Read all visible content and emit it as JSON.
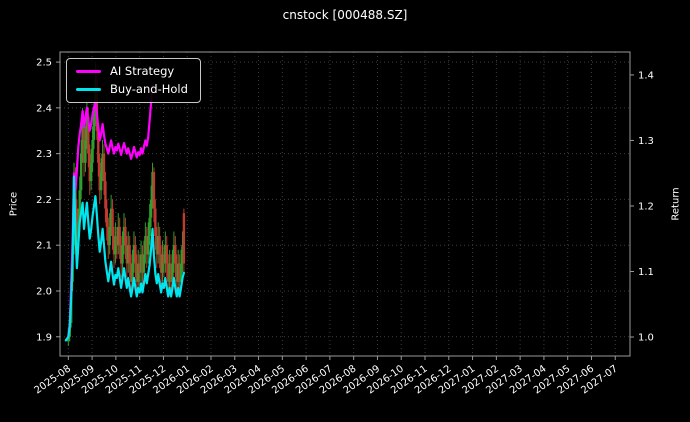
{
  "colors": {
    "background": "#000000",
    "text": "#ffffff",
    "grid": "#3d3d3d",
    "spine": "#9a9a9a",
    "ai_strategy": "#ff00ff",
    "buy_and_hold": "#00e5ee",
    "candle_up": "#2f9e2f",
    "candle_down": "#c03a30"
  },
  "chart_data": {
    "type": "line+candlestick",
    "title": "cnstock [000488.SZ]",
    "xlabel": "",
    "ylabel_left": "Price",
    "ylabel_right": "Return",
    "grid": true,
    "legend_position": "upper-left",
    "x_unit": "months since 2025-08",
    "xlim": [
      -0.35,
      23.62
    ],
    "ylim_left": [
      1.858,
      2.522
    ],
    "ylim_right": [
      0.971,
      1.435
    ],
    "x_tick_labels": [
      "2025-08",
      "2025-09",
      "2025-10",
      "2025-11",
      "2025-12",
      "2026-01",
      "2026-02",
      "2026-03",
      "2026-04",
      "2026-05",
      "2026-06",
      "2026-07",
      "2026-08",
      "2026-09",
      "2026-10",
      "2026-11",
      "2026-12",
      "2027-01",
      "2027-02",
      "2027-03",
      "2027-04",
      "2027-05",
      "2027-06",
      "2027-07"
    ],
    "yticks_left": [
      1.9,
      2.0,
      2.1,
      2.2,
      2.3,
      2.4,
      2.5
    ],
    "yticks_right": [
      1.0,
      1.1,
      1.2,
      1.3,
      1.4
    ],
    "series": [
      {
        "name": "AI Strategy",
        "axis": "right",
        "color": "#ff00ff",
        "points": [
          [
            -0.1,
            0.995
          ],
          [
            0.0,
            1.0
          ],
          [
            0.06,
            1.02
          ],
          [
            0.12,
            1.08
          ],
          [
            0.18,
            1.15
          ],
          [
            0.24,
            1.25
          ],
          [
            0.3,
            1.225
          ],
          [
            0.36,
            1.255
          ],
          [
            0.42,
            1.29
          ],
          [
            0.48,
            1.31
          ],
          [
            0.54,
            1.325
          ],
          [
            0.6,
            1.345
          ],
          [
            0.66,
            1.32
          ],
          [
            0.72,
            1.335
          ],
          [
            0.78,
            1.35
          ],
          [
            0.84,
            1.33
          ],
          [
            0.9,
            1.315
          ],
          [
            0.96,
            1.325
          ],
          [
            1.02,
            1.34
          ],
          [
            1.08,
            1.35
          ],
          [
            1.14,
            1.36
          ],
          [
            1.2,
            1.34
          ],
          [
            1.26,
            1.32
          ],
          [
            1.32,
            1.3
          ],
          [
            1.38,
            1.31
          ],
          [
            1.44,
            1.325
          ],
          [
            1.5,
            1.308
          ],
          [
            1.56,
            1.295
          ],
          [
            1.62,
            1.288
          ],
          [
            1.68,
            1.28
          ],
          [
            1.74,
            1.29
          ],
          [
            1.8,
            1.3
          ],
          [
            1.86,
            1.288
          ],
          [
            1.92,
            1.28
          ],
          [
            1.98,
            1.29
          ],
          [
            2.04,
            1.285
          ],
          [
            2.1,
            1.295
          ],
          [
            2.16,
            1.287
          ],
          [
            2.22,
            1.278
          ],
          [
            2.28,
            1.287
          ],
          [
            2.34,
            1.296
          ],
          [
            2.4,
            1.288
          ],
          [
            2.46,
            1.28
          ],
          [
            2.52,
            1.288
          ],
          [
            2.58,
            1.28
          ],
          [
            2.64,
            1.272
          ],
          [
            2.7,
            1.28
          ],
          [
            2.76,
            1.29
          ],
          [
            2.82,
            1.282
          ],
          [
            2.88,
            1.274
          ],
          [
            2.94,
            1.282
          ],
          [
            3.0,
            1.278
          ],
          [
            3.06,
            1.288
          ],
          [
            3.12,
            1.28
          ],
          [
            3.18,
            1.29
          ],
          [
            3.24,
            1.3
          ],
          [
            3.3,
            1.292
          ],
          [
            3.36,
            1.305
          ],
          [
            3.42,
            1.33
          ],
          [
            3.48,
            1.358
          ],
          [
            3.54,
            1.385
          ]
        ]
      },
      {
        "name": "Buy-and-Hold",
        "axis": "right",
        "color": "#00e5ee",
        "points": [
          [
            -0.1,
            0.995
          ],
          [
            0.0,
            1.0
          ],
          [
            0.06,
            1.015
          ],
          [
            0.12,
            1.06
          ],
          [
            0.18,
            1.12
          ],
          [
            0.24,
            1.245
          ],
          [
            0.3,
            1.16
          ],
          [
            0.36,
            1.105
          ],
          [
            0.42,
            1.14
          ],
          [
            0.48,
            1.175
          ],
          [
            0.54,
            1.19
          ],
          [
            0.6,
            1.205
          ],
          [
            0.66,
            1.165
          ],
          [
            0.72,
            1.185
          ],
          [
            0.78,
            1.205
          ],
          [
            0.84,
            1.175
          ],
          [
            0.9,
            1.15
          ],
          [
            0.96,
            1.165
          ],
          [
            1.02,
            1.185
          ],
          [
            1.08,
            1.2
          ],
          [
            1.14,
            1.215
          ],
          [
            1.2,
            1.185
          ],
          [
            1.26,
            1.155
          ],
          [
            1.32,
            1.13
          ],
          [
            1.38,
            1.145
          ],
          [
            1.44,
            1.165
          ],
          [
            1.5,
            1.14
          ],
          [
            1.56,
            1.115
          ],
          [
            1.62,
            1.1
          ],
          [
            1.68,
            1.085
          ],
          [
            1.74,
            1.1
          ],
          [
            1.8,
            1.115
          ],
          [
            1.86,
            1.095
          ],
          [
            1.92,
            1.08
          ],
          [
            1.98,
            1.095
          ],
          [
            2.04,
            1.09
          ],
          [
            2.1,
            1.105
          ],
          [
            2.16,
            1.09
          ],
          [
            2.22,
            1.075
          ],
          [
            2.28,
            1.09
          ],
          [
            2.34,
            1.105
          ],
          [
            2.4,
            1.09
          ],
          [
            2.46,
            1.075
          ],
          [
            2.52,
            1.09
          ],
          [
            2.58,
            1.075
          ],
          [
            2.64,
            1.062
          ],
          [
            2.7,
            1.075
          ],
          [
            2.76,
            1.09
          ],
          [
            2.82,
            1.075
          ],
          [
            2.88,
            1.062
          ],
          [
            2.94,
            1.075
          ],
          [
            3.0,
            1.068
          ],
          [
            3.06,
            1.082
          ],
          [
            3.12,
            1.068
          ],
          [
            3.18,
            1.082
          ],
          [
            3.24,
            1.096
          ],
          [
            3.3,
            1.082
          ],
          [
            3.36,
            1.096
          ],
          [
            3.42,
            1.11
          ],
          [
            3.48,
            1.135
          ],
          [
            3.54,
            1.165
          ],
          [
            3.6,
            1.125
          ],
          [
            3.66,
            1.096
          ],
          [
            3.72,
            1.082
          ],
          [
            3.78,
            1.096
          ],
          [
            3.84,
            1.082
          ],
          [
            3.9,
            1.068
          ],
          [
            3.96,
            1.082
          ],
          [
            4.02,
            1.075
          ],
          [
            4.08,
            1.09
          ],
          [
            4.14,
            1.075
          ],
          [
            4.2,
            1.062
          ],
          [
            4.26,
            1.075
          ],
          [
            4.32,
            1.062
          ],
          [
            4.38,
            1.075
          ],
          [
            4.44,
            1.09
          ],
          [
            4.5,
            1.075
          ],
          [
            4.56,
            1.062
          ],
          [
            4.62,
            1.075
          ],
          [
            4.68,
            1.062
          ],
          [
            4.74,
            1.075
          ],
          [
            4.8,
            1.09
          ],
          [
            4.86,
            1.098
          ]
        ]
      }
    ],
    "candles": {
      "axis": "left",
      "up_color": "#2f9e2f",
      "down_color": "#c03a30",
      "ohlc": [
        [
          0.0,
          1.89,
          1.92,
          1.88,
          1.9
        ],
        [
          0.06,
          1.9,
          1.96,
          1.89,
          1.93
        ],
        [
          0.12,
          1.93,
          2.05,
          1.92,
          2.02
        ],
        [
          0.18,
          2.02,
          2.13,
          2.0,
          2.1
        ],
        [
          0.24,
          2.1,
          2.28,
          2.08,
          2.25
        ],
        [
          0.3,
          2.25,
          2.27,
          2.15,
          2.18
        ],
        [
          0.36,
          2.18,
          2.2,
          2.07,
          2.1
        ],
        [
          0.42,
          2.1,
          2.18,
          2.08,
          2.15
        ],
        [
          0.48,
          2.15,
          2.25,
          2.13,
          2.22
        ],
        [
          0.54,
          2.22,
          2.33,
          2.2,
          2.3
        ],
        [
          0.6,
          2.3,
          2.4,
          2.28,
          2.36
        ],
        [
          0.66,
          2.36,
          2.38,
          2.25,
          2.28
        ],
        [
          0.72,
          2.28,
          2.36,
          2.26,
          2.33
        ],
        [
          0.78,
          2.33,
          2.42,
          2.31,
          2.38
        ],
        [
          0.84,
          2.38,
          2.4,
          2.27,
          2.3
        ],
        [
          0.9,
          2.3,
          2.32,
          2.21,
          2.24
        ],
        [
          0.96,
          2.24,
          2.31,
          2.22,
          2.28
        ],
        [
          1.02,
          2.28,
          2.36,
          2.26,
          2.33
        ],
        [
          1.08,
          2.33,
          2.41,
          2.31,
          2.38
        ],
        [
          1.14,
          2.38,
          2.5,
          2.36,
          2.46
        ],
        [
          1.2,
          2.46,
          2.47,
          2.33,
          2.35
        ],
        [
          1.26,
          2.35,
          2.37,
          2.25,
          2.28
        ],
        [
          1.32,
          2.28,
          2.3,
          2.19,
          2.22
        ],
        [
          1.38,
          2.22,
          2.29,
          2.2,
          2.26
        ],
        [
          1.44,
          2.26,
          2.33,
          2.24,
          2.3
        ],
        [
          1.5,
          2.3,
          2.32,
          2.21,
          2.24
        ],
        [
          1.56,
          2.24,
          2.26,
          2.15,
          2.18
        ],
        [
          1.62,
          2.18,
          2.2,
          2.11,
          2.14
        ],
        [
          1.68,
          2.14,
          2.16,
          2.07,
          2.1
        ],
        [
          1.74,
          2.1,
          2.17,
          2.08,
          2.14
        ],
        [
          1.8,
          2.14,
          2.21,
          2.12,
          2.18
        ],
        [
          1.86,
          2.18,
          2.2,
          2.09,
          2.12
        ],
        [
          1.92,
          2.12,
          2.14,
          2.05,
          2.08
        ],
        [
          1.98,
          2.08,
          2.15,
          2.06,
          2.12
        ],
        [
          2.04,
          2.12,
          2.14,
          2.07,
          2.1
        ],
        [
          2.1,
          2.1,
          2.17,
          2.08,
          2.14
        ],
        [
          2.16,
          2.14,
          2.16,
          2.07,
          2.1
        ],
        [
          2.22,
          2.1,
          2.12,
          2.03,
          2.06
        ],
        [
          2.28,
          2.06,
          2.13,
          2.04,
          2.1
        ],
        [
          2.34,
          2.1,
          2.17,
          2.08,
          2.14
        ],
        [
          2.4,
          2.14,
          2.16,
          2.07,
          2.1
        ],
        [
          2.46,
          2.1,
          2.12,
          2.03,
          2.06
        ],
        [
          2.52,
          2.06,
          2.13,
          2.04,
          2.1
        ],
        [
          2.58,
          2.1,
          2.12,
          2.03,
          2.06
        ],
        [
          2.64,
          2.06,
          2.08,
          1.99,
          2.02
        ],
        [
          2.7,
          2.02,
          2.09,
          2.0,
          2.06
        ],
        [
          2.76,
          2.06,
          2.13,
          2.04,
          2.1
        ],
        [
          2.82,
          2.1,
          2.12,
          2.03,
          2.06
        ],
        [
          2.88,
          2.06,
          2.08,
          1.99,
          2.02
        ],
        [
          2.94,
          2.02,
          2.09,
          2.0,
          2.06
        ],
        [
          3.0,
          2.06,
          2.08,
          2.01,
          2.04
        ],
        [
          3.06,
          2.04,
          2.11,
          2.02,
          2.08
        ],
        [
          3.12,
          2.08,
          2.1,
          2.01,
          2.04
        ],
        [
          3.18,
          2.04,
          2.11,
          2.02,
          2.08
        ],
        [
          3.24,
          2.08,
          2.15,
          2.06,
          2.12
        ],
        [
          3.3,
          2.12,
          2.14,
          2.05,
          2.08
        ],
        [
          3.36,
          2.08,
          2.15,
          2.06,
          2.12
        ],
        [
          3.42,
          2.12,
          2.19,
          2.1,
          2.16
        ],
        [
          3.48,
          2.16,
          2.23,
          2.14,
          2.2
        ],
        [
          3.54,
          2.2,
          2.28,
          2.18,
          2.26
        ],
        [
          3.6,
          2.26,
          2.27,
          2.15,
          2.18
        ],
        [
          3.66,
          2.18,
          2.2,
          2.09,
          2.12
        ],
        [
          3.72,
          2.12,
          2.14,
          2.05,
          2.08
        ],
        [
          3.78,
          2.08,
          2.15,
          2.06,
          2.12
        ],
        [
          3.84,
          2.12,
          2.14,
          2.05,
          2.08
        ],
        [
          3.9,
          2.08,
          2.1,
          2.01,
          2.04
        ],
        [
          3.96,
          2.04,
          2.11,
          2.02,
          2.08
        ],
        [
          4.02,
          2.08,
          2.1,
          2.03,
          2.06
        ],
        [
          4.08,
          2.06,
          2.13,
          2.04,
          2.1
        ],
        [
          4.14,
          2.1,
          2.12,
          2.03,
          2.06
        ],
        [
          4.2,
          2.06,
          2.08,
          1.99,
          2.02
        ],
        [
          4.26,
          2.02,
          2.09,
          2.0,
          2.06
        ],
        [
          4.32,
          2.06,
          2.08,
          1.99,
          2.02
        ],
        [
          4.38,
          2.02,
          2.09,
          2.0,
          2.06
        ],
        [
          4.44,
          2.06,
          2.13,
          2.04,
          2.1
        ],
        [
          4.5,
          2.1,
          2.12,
          2.03,
          2.06
        ],
        [
          4.56,
          2.06,
          2.08,
          1.99,
          2.02
        ],
        [
          4.62,
          2.02,
          2.09,
          2.0,
          2.06
        ],
        [
          4.68,
          2.06,
          2.08,
          1.99,
          2.02
        ],
        [
          4.74,
          2.02,
          2.09,
          2.0,
          2.06
        ],
        [
          4.8,
          2.06,
          2.13,
          2.04,
          2.1
        ],
        [
          4.86,
          2.17,
          2.18,
          2.04,
          2.06
        ]
      ]
    }
  }
}
